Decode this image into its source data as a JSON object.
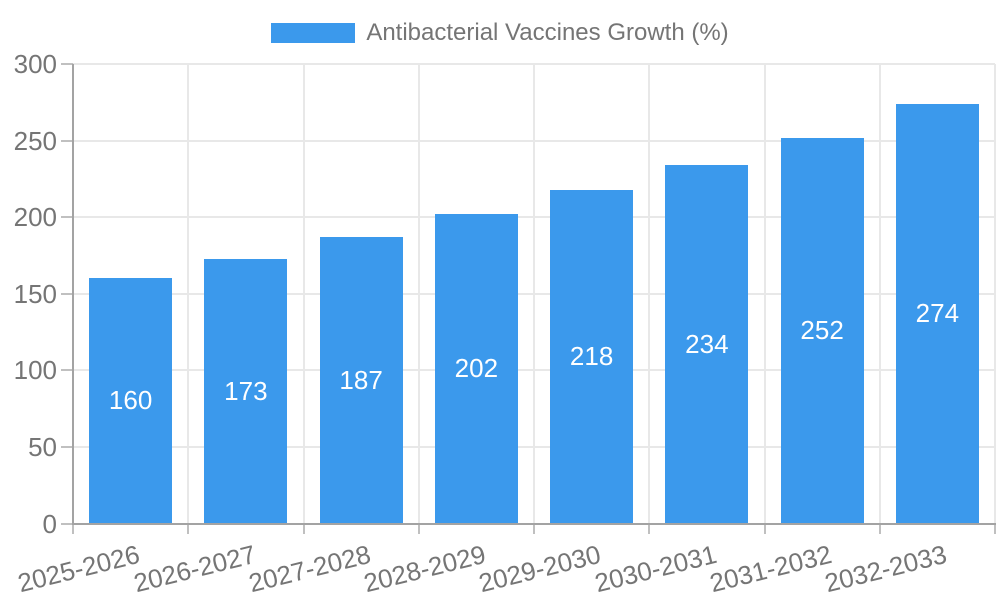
{
  "chart_data": {
    "type": "bar",
    "title": "Antibacterial Vaccines Growth (%)",
    "legend_label": "Antibacterial Vaccines Growth (%)",
    "legend_position": "top-center",
    "categories": [
      "2025-2026",
      "2026-2027",
      "2027-2028",
      "2028-2029",
      "2029-2030",
      "2030-2031",
      "2031-2032",
      "2032-2033"
    ],
    "values": [
      160,
      173,
      187,
      202,
      218,
      234,
      252,
      274
    ],
    "xlabel": "",
    "ylabel": "",
    "ylim": [
      0,
      300
    ],
    "yticks": [
      0,
      50,
      100,
      150,
      200,
      250,
      300
    ],
    "grid": true,
    "x_label_rotation_deg": -14,
    "colors": {
      "bar": "#3B99EC",
      "value_label": "#FFFFFF",
      "tick_label": "#757575",
      "legend_text": "#757575",
      "grid_line": "#E8E8E8",
      "axis_line": "#A3A3A3",
      "tick_mark": "#C0C0C0",
      "background": "#FFFFFF"
    }
  }
}
